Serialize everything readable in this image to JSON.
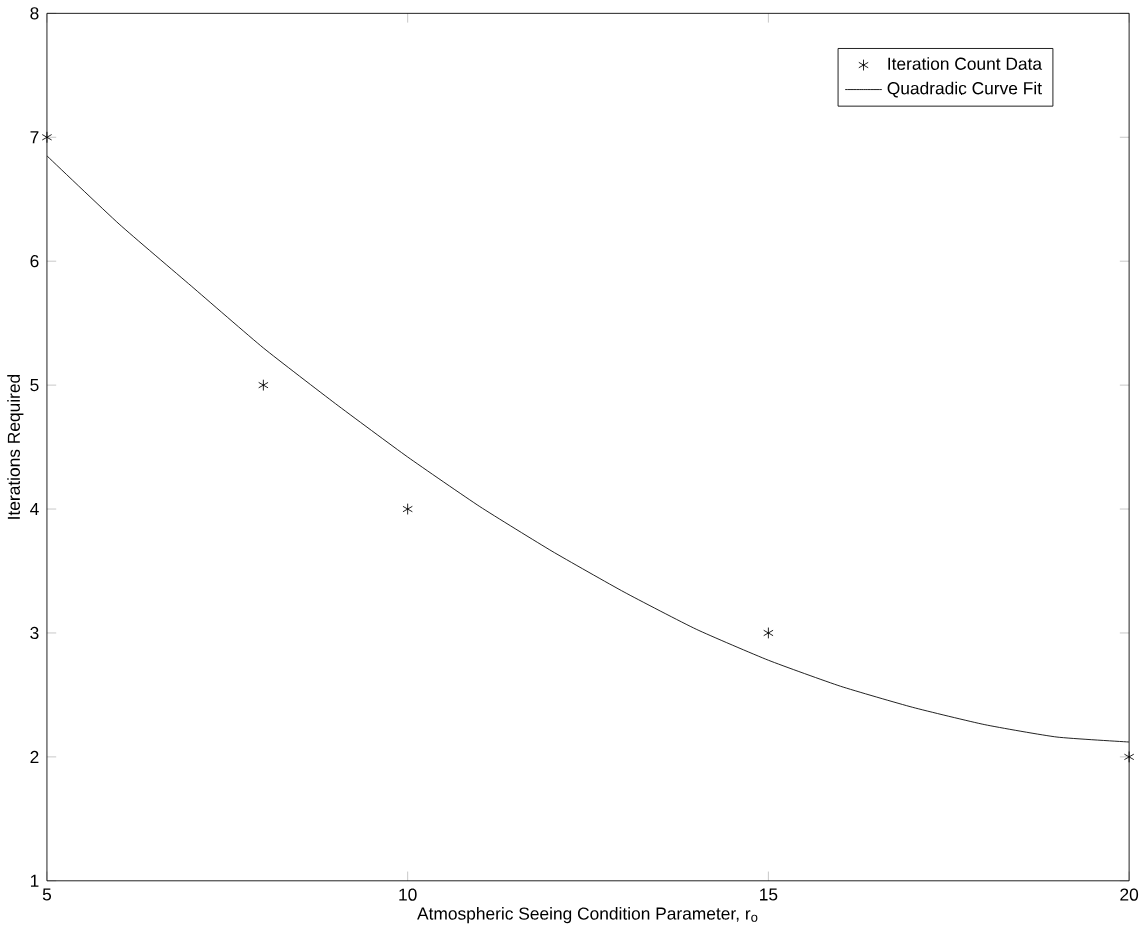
{
  "chart_data": {
    "type": "scatter",
    "xlabel": "Atmospheric Seeing Condition Parameter, r$_{o}$",
    "ylabel": "Iterations Required",
    "xlim": [
      5,
      20
    ],
    "xticks": [
      5,
      10,
      15,
      20
    ],
    "ylim": [
      1,
      8
    ],
    "yticks": [
      1,
      2,
      3,
      4,
      5,
      6,
      7,
      8
    ],
    "legend": "top right",
    "grid": false,
    "series": [
      {
        "name": "Iteration Count Data",
        "type": "scatter",
        "marker": "cross",
        "color": "#000000",
        "x": [
          5,
          8,
          10,
          15,
          20
        ],
        "values": [
          7,
          5,
          4,
          3,
          2
        ]
      },
      {
        "name": "Quadradic Curve Fit",
        "type": "line",
        "line_style": "solid",
        "color": "#000000",
        "x": [
          5,
          6,
          7,
          8,
          9,
          10,
          11,
          12,
          13,
          14,
          15,
          16,
          17,
          18,
          19,
          20
        ],
        "values": [
          6.85,
          6.3,
          5.8,
          5.3,
          4.85,
          4.42,
          4.02,
          3.66,
          3.33,
          3.03,
          2.78,
          2.57,
          2.4,
          2.26,
          2.16,
          2.12
        ]
      }
    ]
  }
}
